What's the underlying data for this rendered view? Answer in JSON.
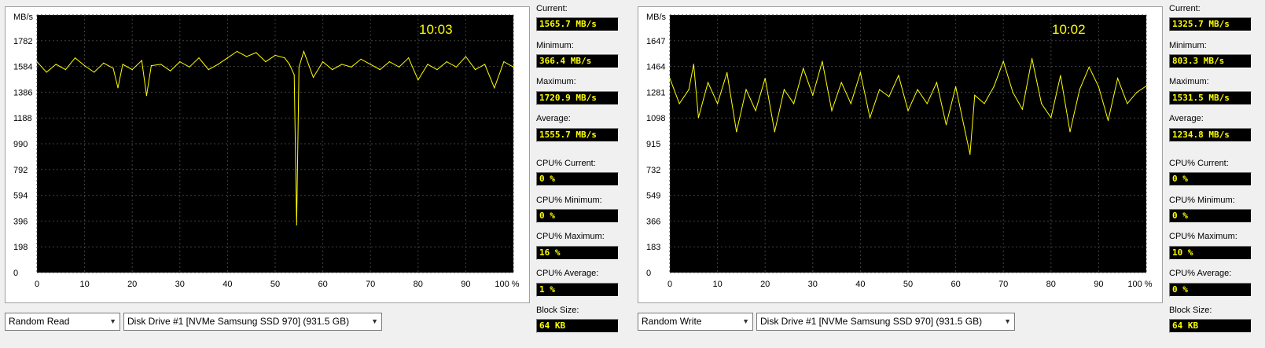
{
  "panels": [
    {
      "clock": "10:03",
      "y_unit": "MB/s",
      "y_ticks": [
        "0",
        "198",
        "396",
        "594",
        "792",
        "990",
        "1188",
        "1386",
        "1584",
        "1782"
      ],
      "x_ticks": [
        "0",
        "10",
        "20",
        "30",
        "40",
        "50",
        "60",
        "70",
        "80",
        "90",
        "100 %"
      ],
      "test_select": "Random Read",
      "drive_select": "Disk Drive #1  [NVMe    Samsung SSD 970]  (931.5 GB)",
      "stats": {
        "current_label": "Current:",
        "current": "1565.7 MB/s",
        "minimum_label": "Minimum:",
        "minimum": "366.4 MB/s",
        "maximum_label": "Maximum:",
        "maximum": "1720.9 MB/s",
        "average_label": "Average:",
        "average": "1555.7 MB/s",
        "cpu_current_label": "CPU% Current:",
        "cpu_current": "0 %",
        "cpu_minimum_label": "CPU% Minimum:",
        "cpu_minimum": "0 %",
        "cpu_maximum_label": "CPU% Maximum:",
        "cpu_maximum": "16 %",
        "cpu_average_label": "CPU% Average:",
        "cpu_average": "1 %",
        "block_size_label": "Block Size:",
        "block_size": "64 KB"
      }
    },
    {
      "clock": "10:02",
      "y_unit": "MB/s",
      "y_ticks": [
        "0",
        "183",
        "366",
        "549",
        "732",
        "915",
        "1098",
        "1281",
        "1464",
        "1647"
      ],
      "x_ticks": [
        "0",
        "10",
        "20",
        "30",
        "40",
        "50",
        "60",
        "70",
        "80",
        "90",
        "100 %"
      ],
      "test_select": "Random Write",
      "drive_select": "Disk Drive #1  [NVMe    Samsung SSD 970]  (931.5 GB)",
      "stats": {
        "current_label": "Current:",
        "current": "1325.7 MB/s",
        "minimum_label": "Minimum:",
        "minimum": "803.3 MB/s",
        "maximum_label": "Maximum:",
        "maximum": "1531.5 MB/s",
        "average_label": "Average:",
        "average": "1234.8 MB/s",
        "cpu_current_label": "CPU% Current:",
        "cpu_current": "0 %",
        "cpu_minimum_label": "CPU% Minimum:",
        "cpu_minimum": "0 %",
        "cpu_maximum_label": "CPU% Maximum:",
        "cpu_maximum": "10 %",
        "cpu_average_label": "CPU% Average:",
        "cpu_average": "0 %",
        "block_size_label": "Block Size:",
        "block_size": "64 KB"
      }
    }
  ],
  "chart_data": [
    {
      "type": "line",
      "ylabel": "MB/s",
      "xlim": [
        0,
        100
      ],
      "ylim": [
        0,
        1980
      ],
      "grid": true,
      "line_color": "#ffff00",
      "series": [
        {
          "x": [
            0,
            2,
            4,
            6,
            8,
            10,
            12,
            14,
            16,
            17,
            18,
            20,
            22,
            23,
            24,
            26,
            28,
            30,
            32,
            34,
            36,
            38,
            40,
            42,
            44,
            46,
            48,
            50,
            52,
            53,
            54,
            54.5,
            55,
            56,
            58,
            60,
            62,
            64,
            66,
            68,
            70,
            72,
            74,
            76,
            78,
            80,
            82,
            84,
            86,
            88,
            90,
            92,
            94,
            96,
            98,
            100
          ],
          "y": [
            1620,
            1540,
            1600,
            1560,
            1650,
            1590,
            1540,
            1610,
            1570,
            1420,
            1600,
            1560,
            1630,
            1360,
            1590,
            1600,
            1550,
            1620,
            1580,
            1650,
            1560,
            1600,
            1650,
            1700,
            1660,
            1690,
            1620,
            1670,
            1650,
            1600,
            1520,
            366,
            1580,
            1700,
            1500,
            1620,
            1560,
            1600,
            1580,
            1640,
            1600,
            1560,
            1620,
            1580,
            1650,
            1480,
            1600,
            1560,
            1620,
            1580,
            1660,
            1560,
            1600,
            1420,
            1620,
            1580
          ]
        }
      ]
    },
    {
      "type": "line",
      "ylabel": "MB/s",
      "xlim": [
        0,
        100
      ],
      "ylim": [
        0,
        1830
      ],
      "grid": true,
      "line_color": "#ffff00",
      "series": [
        {
          "x": [
            0,
            2,
            4,
            5,
            6,
            8,
            10,
            12,
            14,
            16,
            18,
            20,
            22,
            24,
            26,
            28,
            30,
            32,
            34,
            36,
            38,
            40,
            42,
            44,
            46,
            48,
            50,
            52,
            54,
            56,
            58,
            60,
            62,
            63,
            64,
            66,
            68,
            70,
            72,
            74,
            76,
            78,
            80,
            82,
            84,
            86,
            88,
            90,
            92,
            94,
            96,
            98,
            100
          ],
          "y": [
            1380,
            1200,
            1300,
            1480,
            1100,
            1350,
            1200,
            1420,
            1000,
            1300,
            1150,
            1380,
            1000,
            1300,
            1200,
            1450,
            1260,
            1500,
            1150,
            1350,
            1200,
            1420,
            1100,
            1300,
            1250,
            1400,
            1150,
            1300,
            1200,
            1350,
            1050,
            1320,
            1000,
            840,
            1260,
            1200,
            1320,
            1500,
            1280,
            1160,
            1520,
            1200,
            1100,
            1400,
            1000,
            1300,
            1460,
            1320,
            1080,
            1380,
            1200,
            1280,
            1325
          ]
        }
      ]
    }
  ]
}
